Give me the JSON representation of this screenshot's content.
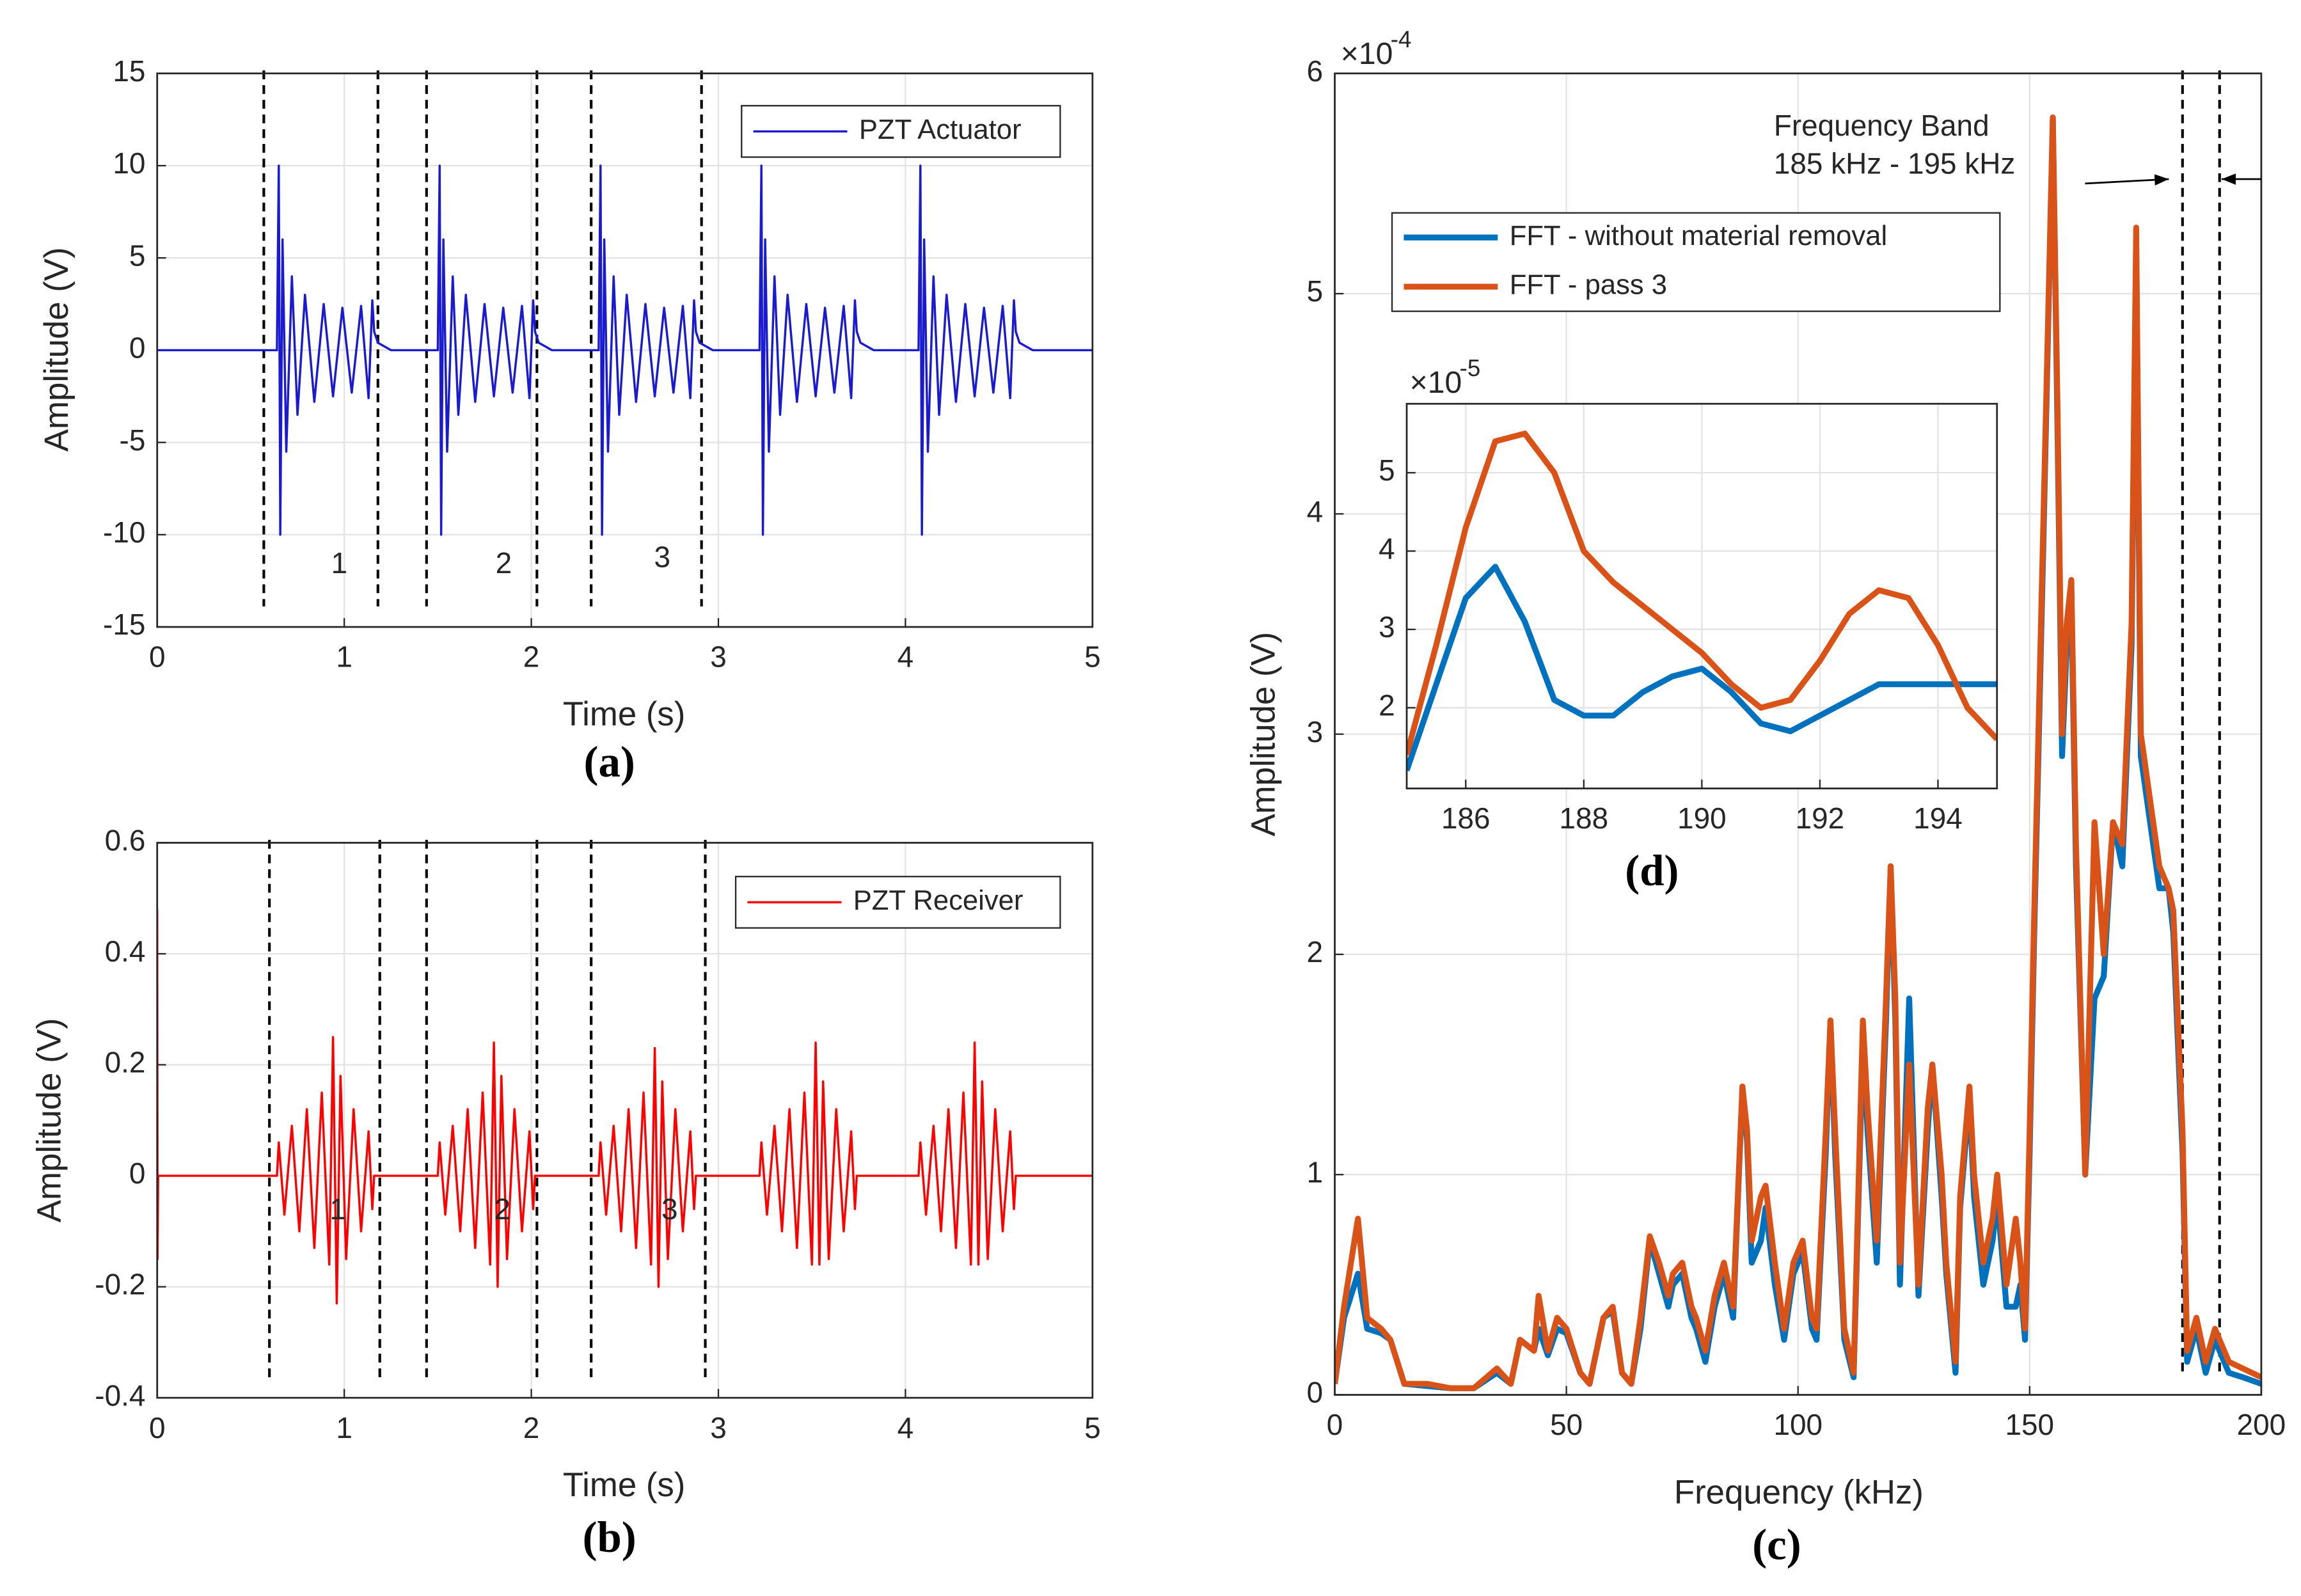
{
  "chart_data": [
    {
      "type": "line",
      "caption": "(a)",
      "xlabel": "Time (s)",
      "ylabel": "Amplitude (V)",
      "xlim": [
        0,
        5
      ],
      "xticks": [
        0,
        1,
        2,
        3,
        4,
        5
      ],
      "ylim": [
        -15,
        15
      ],
      "yticks": [
        -15,
        -10,
        -5,
        0,
        5,
        10,
        15
      ],
      "grid": true,
      "legend": "northeast",
      "vlines": [
        0.57,
        1.18,
        1.44,
        2.03,
        2.32,
        2.91
      ],
      "annotations": [
        "1",
        "2",
        "3"
      ],
      "x": [
        0,
        0.64,
        0.65,
        0.658,
        0.67,
        0.69,
        0.72,
        0.75,
        0.79,
        0.84,
        0.89,
        0.94,
        0.99,
        1.04,
        1.09,
        1.13,
        1.15,
        1.16,
        1.18,
        1.25,
        1.5,
        1.51,
        1.518,
        1.53,
        1.55,
        1.58,
        1.61,
        1.65,
        1.7,
        1.75,
        1.8,
        1.85,
        1.9,
        1.95,
        1.99,
        2.01,
        2.02,
        2.04,
        2.11,
        2.36,
        2.37,
        2.378,
        2.39,
        2.41,
        2.44,
        2.47,
        2.51,
        2.56,
        2.61,
        2.66,
        2.71,
        2.76,
        2.81,
        2.85,
        2.87,
        2.88,
        2.9,
        2.97,
        3.22,
        3.23,
        3.238,
        3.25,
        3.27,
        3.3,
        3.33,
        3.37,
        3.42,
        3.47,
        3.52,
        3.57,
        3.62,
        3.67,
        3.71,
        3.73,
        3.74,
        3.76,
        3.83,
        4.07,
        4.08,
        4.088,
        4.1,
        4.12,
        4.15,
        4.18,
        4.22,
        4.27,
        4.32,
        4.37,
        4.42,
        4.47,
        4.52,
        4.56,
        4.58,
        4.59,
        4.61,
        4.68,
        5
      ],
      "series": [
        {
          "name": "PZT Actuator",
          "color": "#1a1ad0",
          "values": [
            0,
            0,
            10,
            -10,
            6,
            -5.5,
            4,
            -3.5,
            3,
            -2.8,
            2.5,
            -2.5,
            2.3,
            -2.3,
            2.4,
            -2.6,
            2.7,
            1,
            0.4,
            0,
            0,
            10,
            -10,
            6,
            -5.5,
            4,
            -3.5,
            3,
            -2.8,
            2.5,
            -2.5,
            2.3,
            -2.3,
            2.4,
            -2.6,
            2.7,
            1,
            0.4,
            0,
            0,
            10,
            -10,
            6,
            -5.5,
            4,
            -3.5,
            3,
            -2.8,
            2.5,
            -2.5,
            2.3,
            -2.3,
            2.4,
            -2.6,
            2.7,
            1,
            0.4,
            0,
            0,
            10,
            -10,
            6,
            -5.5,
            4,
            -3.5,
            3,
            -2.8,
            2.5,
            -2.5,
            2.3,
            -2.3,
            2.4,
            -2.6,
            2.7,
            1,
            0.4,
            0,
            0,
            10,
            -10,
            6,
            -5.5,
            4,
            -3.5,
            3,
            -2.8,
            2.5,
            -2.5,
            2.3,
            -2.3,
            2.4,
            -2.6,
            2.7,
            1,
            0.4,
            0,
            0
          ]
        }
      ]
    },
    {
      "type": "line",
      "caption": "(b)",
      "xlabel": "Time (s)",
      "ylabel": "Amplitude (V)",
      "xlim": [
        0,
        5
      ],
      "xticks": [
        0,
        1,
        2,
        3,
        4,
        5
      ],
      "ylim": [
        -0.4,
        0.6
      ],
      "yticks": [
        -0.4,
        -0.2,
        0,
        0.2,
        0.4,
        0.6
      ],
      "grid": true,
      "legend": "northeast",
      "vlines": [
        0.6,
        1.19,
        1.44,
        2.03,
        2.32,
        2.93
      ],
      "annotations": [
        "1",
        "2",
        "3"
      ],
      "x": [
        0,
        0.002,
        0.005,
        0.64,
        0.65,
        0.68,
        0.72,
        0.76,
        0.8,
        0.84,
        0.88,
        0.92,
        0.94,
        0.96,
        0.98,
        1.01,
        1.05,
        1.09,
        1.13,
        1.15,
        1.16,
        1.5,
        1.51,
        1.54,
        1.58,
        1.62,
        1.66,
        1.7,
        1.74,
        1.78,
        1.8,
        1.82,
        1.84,
        1.87,
        1.91,
        1.95,
        1.99,
        2.01,
        2.02,
        2.36,
        2.37,
        2.4,
        2.44,
        2.48,
        2.52,
        2.56,
        2.6,
        2.64,
        2.66,
        2.68,
        2.7,
        2.73,
        2.77,
        2.81,
        2.85,
        2.87,
        2.88,
        3.22,
        3.23,
        3.26,
        3.3,
        3.34,
        3.38,
        3.42,
        3.46,
        3.5,
        3.52,
        3.54,
        3.56,
        3.59,
        3.63,
        3.67,
        3.71,
        3.73,
        3.74,
        4.07,
        4.08,
        4.11,
        4.15,
        4.19,
        4.23,
        4.27,
        4.31,
        4.35,
        4.37,
        4.39,
        4.41,
        4.44,
        4.48,
        4.52,
        4.56,
        4.58,
        4.59,
        5
      ],
      "series": [
        {
          "name": "PZT Receiver",
          "color": "#ff0000",
          "values": [
            0.48,
            -0.15,
            0,
            0,
            0.06,
            -0.07,
            0.09,
            -0.1,
            0.12,
            -0.13,
            0.15,
            -0.16,
            0.25,
            -0.23,
            0.18,
            -0.15,
            0.12,
            -0.1,
            0.08,
            -0.06,
            0,
            0,
            0.06,
            -0.07,
            0.09,
            -0.1,
            0.12,
            -0.13,
            0.15,
            -0.16,
            0.24,
            -0.2,
            0.18,
            -0.15,
            0.12,
            -0.1,
            0.08,
            -0.06,
            0,
            0,
            0.06,
            -0.07,
            0.09,
            -0.1,
            0.12,
            -0.13,
            0.15,
            -0.16,
            0.23,
            -0.2,
            0.17,
            -0.15,
            0.12,
            -0.1,
            0.08,
            -0.06,
            0,
            0,
            0.06,
            -0.07,
            0.09,
            -0.1,
            0.12,
            -0.13,
            0.15,
            -0.16,
            0.24,
            -0.16,
            0.17,
            -0.15,
            0.12,
            -0.1,
            0.08,
            -0.06,
            0,
            0,
            0.06,
            -0.07,
            0.09,
            -0.1,
            0.12,
            -0.13,
            0.15,
            -0.16,
            0.24,
            -0.16,
            0.17,
            -0.15,
            0.12,
            -0.1,
            0.08,
            -0.06,
            0,
            0
          ]
        }
      ]
    },
    {
      "type": "line",
      "caption": "(c)",
      "xlabel": "Frequency (kHz)",
      "ylabel": "Amplitude (V)",
      "xlim": [
        0,
        200
      ],
      "xticks": [
        0,
        50,
        100,
        150,
        200
      ],
      "ylim": [
        0,
        0.0006
      ],
      "yticks": [
        0,
        {
          "value": 0.0001,
          "label": "1"
        },
        {
          "value": 0.0002,
          "label": "2"
        },
        {
          "value": 0.0003,
          "label": "3"
        },
        {
          "value": 0.0004,
          "label": "4"
        },
        {
          "value": 0.0005,
          "label": "5"
        },
        {
          "value": 0.0006,
          "label": "6"
        }
      ],
      "exponent": {
        "base": "×10",
        "power": "-4"
      },
      "grid": true,
      "legend": "northwest",
      "vlines": [
        183,
        191
      ],
      "annotations": [
        "Frequency Band",
        "185 kHz - 195 kHz"
      ],
      "x": [
        0,
        2,
        5,
        7,
        10,
        12,
        15,
        20,
        25,
        30,
        35,
        38,
        40,
        43,
        44,
        46,
        48,
        50,
        53,
        55,
        58,
        60,
        62,
        64,
        66,
        68,
        70,
        72,
        73,
        75,
        77,
        78,
        80,
        82,
        84,
        86,
        88,
        89,
        90,
        92,
        93,
        95,
        97,
        99,
        101,
        103,
        104,
        106,
        107,
        108,
        110,
        112,
        114,
        115,
        117,
        119,
        120,
        121,
        122,
        124,
        126,
        128,
        129,
        131,
        132,
        134,
        135,
        137,
        138,
        140,
        142,
        143,
        145,
        147,
        148,
        149,
        150,
        151,
        153,
        155,
        156,
        157,
        158,
        159,
        160,
        162,
        164,
        166,
        168,
        170,
        172,
        173,
        174,
        176,
        178,
        180,
        181,
        183,
        184,
        186,
        188,
        190,
        193,
        196,
        200
      ],
      "series": [
        {
          "name": "FFT - without material removal",
          "color": "#0072bd",
          "values": [
            5e-06,
            3.5e-05,
            5.5e-05,
            3e-05,
            2.8e-05,
            2.5e-05,
            5e-06,
            4e-06,
            3e-06,
            3e-06,
            1e-05,
            5e-06,
            2.5e-05,
            2e-05,
            3e-05,
            1.8e-05,
            3e-05,
            2.8e-05,
            1e-05,
            5e-06,
            3.5e-05,
            3.8e-05,
            1e-05,
            5e-06,
            3e-05,
            7e-05,
            5.5e-05,
            4e-05,
            5e-05,
            5.5e-05,
            3.5e-05,
            3e-05,
            1.5e-05,
            4e-05,
            5.5e-05,
            3.5e-05,
            0.00014,
            0.000115,
            6e-05,
            7e-05,
            8.5e-05,
            5e-05,
            2.5e-05,
            5.5e-05,
            6.5e-05,
            3e-05,
            2.5e-05,
            0.00011,
            0.00017,
            0.00011,
            2.5e-05,
            8e-06,
            0.00016,
            0.00012,
            6e-05,
            0.00017,
            0.00024,
            0.00017,
            5e-05,
            0.00018,
            4.5e-05,
            0.00012,
            0.00015,
            9e-05,
            5.5e-05,
            1e-05,
            8.5e-05,
            0.000135,
            9e-05,
            5e-05,
            7e-05,
            9e-05,
            4e-05,
            4e-05,
            5e-05,
            2.5e-05,
            0.00011,
            0.00021,
            0.00039,
            0.00058,
            0.00044,
            0.00029,
            0.00034,
            0.00036,
            0.00024,
            0.0001,
            0.00018,
            0.00019,
            0.00026,
            0.00024,
            0.00034,
            0.00052,
            0.00029,
            0.00026,
            0.00023,
            0.00023,
            0.00021,
            0.00011,
            1.5e-05,
            3e-05,
            1e-05,
            2.5e-05,
            1e-05,
            8e-06,
            5e-06
          ]
        },
        {
          "name": "FFT - pass 3",
          "color": "#d95319",
          "values": [
            5e-06,
            4e-05,
            8e-05,
            3.5e-05,
            3e-05,
            2.5e-05,
            5e-06,
            5e-06,
            3e-06,
            3e-06,
            1.2e-05,
            5e-06,
            2.5e-05,
            2e-05,
            4.5e-05,
            2e-05,
            3.5e-05,
            3e-05,
            1e-05,
            5e-06,
            3.5e-05,
            4e-05,
            1e-05,
            5e-06,
            3.5e-05,
            7.2e-05,
            6e-05,
            4.5e-05,
            5.5e-05,
            6e-05,
            4e-05,
            3.5e-05,
            2e-05,
            4.5e-05,
            6e-05,
            4e-05,
            0.00014,
            0.00012,
            7e-05,
            9e-05,
            9.5e-05,
            6e-05,
            3e-05,
            6e-05,
            7e-05,
            3.5e-05,
            3e-05,
            0.00012,
            0.00017,
            0.00012,
            3e-05,
            1e-05,
            0.00017,
            0.00013,
            7e-05,
            0.00018,
            0.00024,
            0.00018,
            6e-05,
            0.00015,
            5e-05,
            0.00013,
            0.00015,
            0.0001,
            6e-05,
            1.5e-05,
            9e-05,
            0.00014,
            0.0001,
            6e-05,
            8e-05,
            0.0001,
            5e-05,
            8e-05,
            6e-05,
            3e-05,
            0.00012,
            0.00022,
            0.0004,
            0.00058,
            0.00045,
            0.0003,
            0.00035,
            0.00037,
            0.00025,
            0.0001,
            0.00026,
            0.0002,
            0.00026,
            0.00025,
            0.00035,
            0.00053,
            0.0003,
            0.00027,
            0.00024,
            0.00023,
            0.00022,
            0.00012,
            2e-05,
            3.5e-05,
            1.5e-05,
            3e-05,
            1.5e-05,
            1.2e-05,
            8e-06
          ]
        }
      ]
    },
    {
      "type": "line",
      "caption": "(d)",
      "xlim": [
        185,
        195
      ],
      "xticks": [
        186,
        188,
        190,
        192,
        194
      ],
      "ylim": [
        9.7e-06,
        5.88e-05
      ],
      "yticks": [
        {
          "value": 2e-05,
          "label": "2"
        },
        {
          "value": 3e-05,
          "label": "3"
        },
        {
          "value": 4e-05,
          "label": "4"
        },
        {
          "value": 5e-05,
          "label": "5"
        }
      ],
      "exponent": {
        "base": "×10",
        "power": "-5"
      },
      "grid": true,
      "x": [
        185,
        185.5,
        186,
        186.5,
        187,
        187.5,
        188,
        188.5,
        189,
        189.5,
        190,
        190.5,
        191,
        191.5,
        192,
        192.5,
        193,
        193.5,
        194,
        194.5,
        195
      ],
      "series": [
        {
          "color": "#0072bd",
          "values": [
            1.2e-05,
            2.3e-05,
            3.4e-05,
            3.8e-05,
            3.1e-05,
            2.1e-05,
            1.9e-05,
            1.9e-05,
            2.2e-05,
            2.4e-05,
            2.5e-05,
            2.2e-05,
            1.8e-05,
            1.7e-05,
            1.9e-05,
            2.1e-05,
            2.3e-05,
            2.3e-05,
            2.3e-05,
            2.3e-05,
            2.3e-05
          ]
        },
        {
          "color": "#d95319",
          "values": [
            1.4e-05,
            2.8e-05,
            4.3e-05,
            5.4e-05,
            5.5e-05,
            5e-05,
            4e-05,
            3.6e-05,
            3.3e-05,
            3e-05,
            2.7e-05,
            2.3e-05,
            2e-05,
            2.1e-05,
            2.6e-05,
            3.2e-05,
            3.5e-05,
            3.4e-05,
            2.8e-05,
            2e-05,
            1.6e-05
          ]
        }
      ]
    }
  ]
}
